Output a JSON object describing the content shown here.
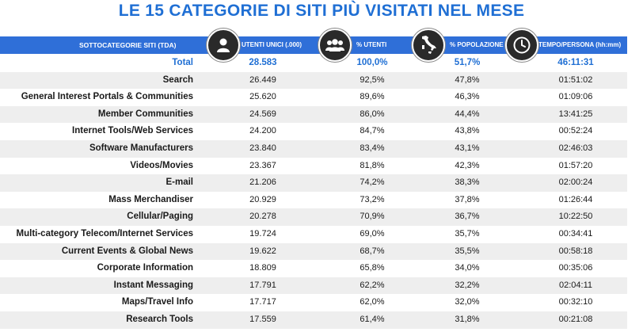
{
  "title": "LE 15 CATEGORIE DI SITI PIÙ VISITATI NEL MESE",
  "header": {
    "category": "SOTTOCATEGORIE SITI  (TDA)",
    "unique_users": "UTENTI UNICI (.000)",
    "percent_users": "% UTENTI",
    "percent_population": "% POPOLAZIONE",
    "time_per_person": "TEMPO/PERSONA (hh:mm)"
  },
  "icons": [
    "user-icon",
    "group-icon",
    "italy-map-icon",
    "clock-icon"
  ],
  "total": {
    "name": "Total",
    "unique_users": "28.583",
    "percent_users": "100,0%",
    "percent_population": "51,7%",
    "time_per_person": "46:11:31"
  },
  "rows": [
    {
      "name": "Search",
      "unique_users": "26.449",
      "percent_users": "92,5%",
      "percent_population": "47,8%",
      "time_per_person": "01:51:02"
    },
    {
      "name": "General Interest Portals & Communities",
      "unique_users": "25.620",
      "percent_users": "89,6%",
      "percent_population": "46,3%",
      "time_per_person": "01:09:06"
    },
    {
      "name": "Member Communities",
      "unique_users": "24.569",
      "percent_users": "86,0%",
      "percent_population": "44,4%",
      "time_per_person": "13:41:25"
    },
    {
      "name": "Internet Tools/Web Services",
      "unique_users": "24.200",
      "percent_users": "84,7%",
      "percent_population": "43,8%",
      "time_per_person": "00:52:24"
    },
    {
      "name": "Software Manufacturers",
      "unique_users": "23.840",
      "percent_users": "83,4%",
      "percent_population": "43,1%",
      "time_per_person": "02:46:03"
    },
    {
      "name": "Videos/Movies",
      "unique_users": "23.367",
      "percent_users": "81,8%",
      "percent_population": "42,3%",
      "time_per_person": "01:57:20"
    },
    {
      "name": "E-mail",
      "unique_users": "21.206",
      "percent_users": "74,2%",
      "percent_population": "38,3%",
      "time_per_person": "02:00:24"
    },
    {
      "name": "Mass Merchandiser",
      "unique_users": "20.929",
      "percent_users": "73,2%",
      "percent_population": "37,8%",
      "time_per_person": "01:26:44"
    },
    {
      "name": "Cellular/Paging",
      "unique_users": "20.278",
      "percent_users": "70,9%",
      "percent_population": "36,7%",
      "time_per_person": "10:22:50"
    },
    {
      "name": "Multi-category Telecom/Internet Services",
      "unique_users": "19.724",
      "percent_users": "69,0%",
      "percent_population": "35,7%",
      "time_per_person": "00:34:41"
    },
    {
      "name": "Current Events & Global News",
      "unique_users": "19.622",
      "percent_users": "68,7%",
      "percent_population": "35,5%",
      "time_per_person": "00:58:18"
    },
    {
      "name": "Corporate Information",
      "unique_users": "18.809",
      "percent_users": "65,8%",
      "percent_population": "34,0%",
      "time_per_person": "00:35:06"
    },
    {
      "name": "Instant Messaging",
      "unique_users": "17.791",
      "percent_users": "62,2%",
      "percent_population": "32,2%",
      "time_per_person": "02:04:11"
    },
    {
      "name": "Maps/Travel Info",
      "unique_users": "17.717",
      "percent_users": "62,0%",
      "percent_population": "32,0%",
      "time_per_person": "00:32:10"
    },
    {
      "name": "Research Tools",
      "unique_users": "17.559",
      "percent_users": "61,4%",
      "percent_population": "31,8%",
      "time_per_person": "00:21:08"
    }
  ],
  "colors": {
    "title": "#1f6fd4",
    "header_bg": "#2f6fd8",
    "alt_row": "#eeeeee",
    "total_text": "#1f6fd4"
  }
}
